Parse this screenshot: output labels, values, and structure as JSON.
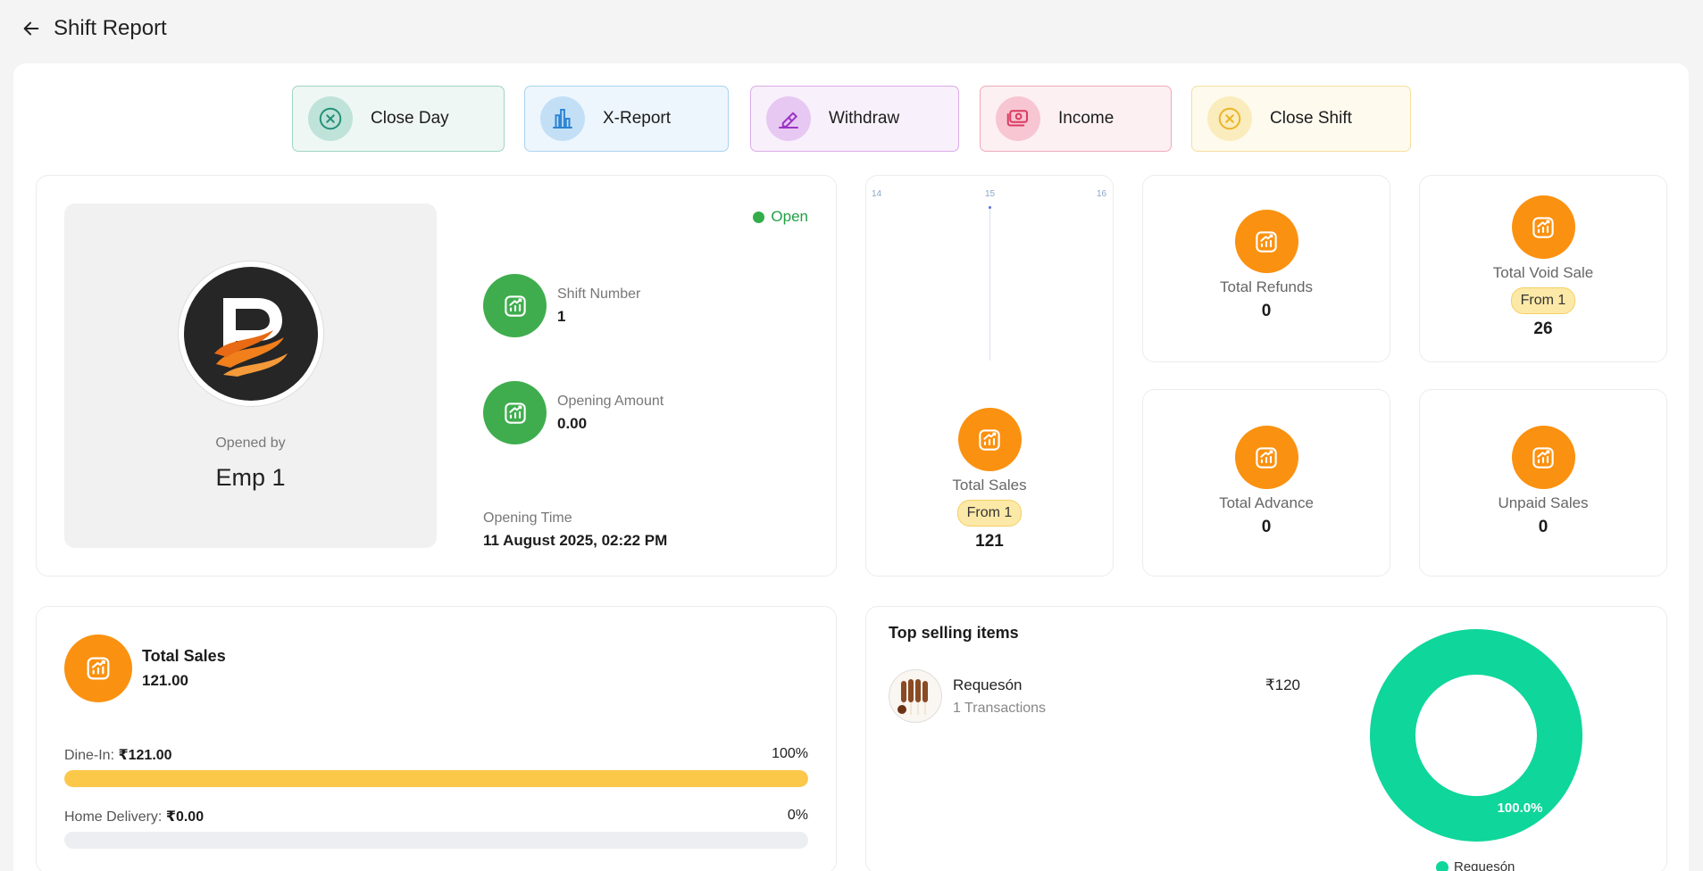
{
  "header": {
    "title": "Shift Report"
  },
  "actions": [
    {
      "label": "Close Day",
      "icon": "x-circle-icon"
    },
    {
      "label": "X-Report",
      "icon": "bar-chart-icon"
    },
    {
      "label": "Withdraw",
      "icon": "eraser-icon"
    },
    {
      "label": "Income",
      "icon": "cash-icon"
    },
    {
      "label": "Close Shift",
      "icon": "x-circle-icon"
    }
  ],
  "shift": {
    "status": "Open",
    "opened_by_label": "Opened by",
    "opened_by": "Emp 1",
    "shift_number_label": "Shift Number",
    "shift_number": "1",
    "opening_amount_label": "Opening Amount",
    "opening_amount": "0.00",
    "opening_time_label": "Opening Time",
    "opening_time": "11 August 2025, 02:22 PM"
  },
  "sales_card": {
    "chart_ticks": [
      "14",
      "15",
      "16"
    ],
    "label": "Total Sales",
    "badge": "From 1",
    "value": "121"
  },
  "stats": {
    "refunds": {
      "label": "Total Refunds",
      "value": "0"
    },
    "void": {
      "label": "Total Void Sale",
      "badge": "From 1",
      "value": "26"
    },
    "advance": {
      "label": "Total Advance",
      "value": "0"
    },
    "unpaid": {
      "label": "Unpaid Sales",
      "value": "0"
    }
  },
  "total_sales": {
    "title": "Total Sales",
    "amount": "121.00",
    "channels": [
      {
        "label": "Dine-In:",
        "amount": "₹121.00",
        "percent_label": "100%",
        "fraction": 1.0
      },
      {
        "label": "Home Delivery:",
        "amount": "₹0.00",
        "percent_label": "0%",
        "fraction": 0.0
      }
    ]
  },
  "top_selling": {
    "title": "Top selling items",
    "items": [
      {
        "name": "Requesón",
        "transactions": "1 Transactions",
        "price": "₹120"
      }
    ]
  },
  "chart_data": {
    "type": "pie",
    "categories": [
      "Requesón"
    ],
    "values": [
      100.0
    ],
    "labels": [
      "100.0%"
    ],
    "colors": [
      "#0fd69a"
    ],
    "legend": "bottom"
  },
  "colors": {
    "accent_orange": "#fb9110",
    "accent_green": "#3fad4e",
    "status_open": "#22a045",
    "donut": "#0fd69a"
  }
}
